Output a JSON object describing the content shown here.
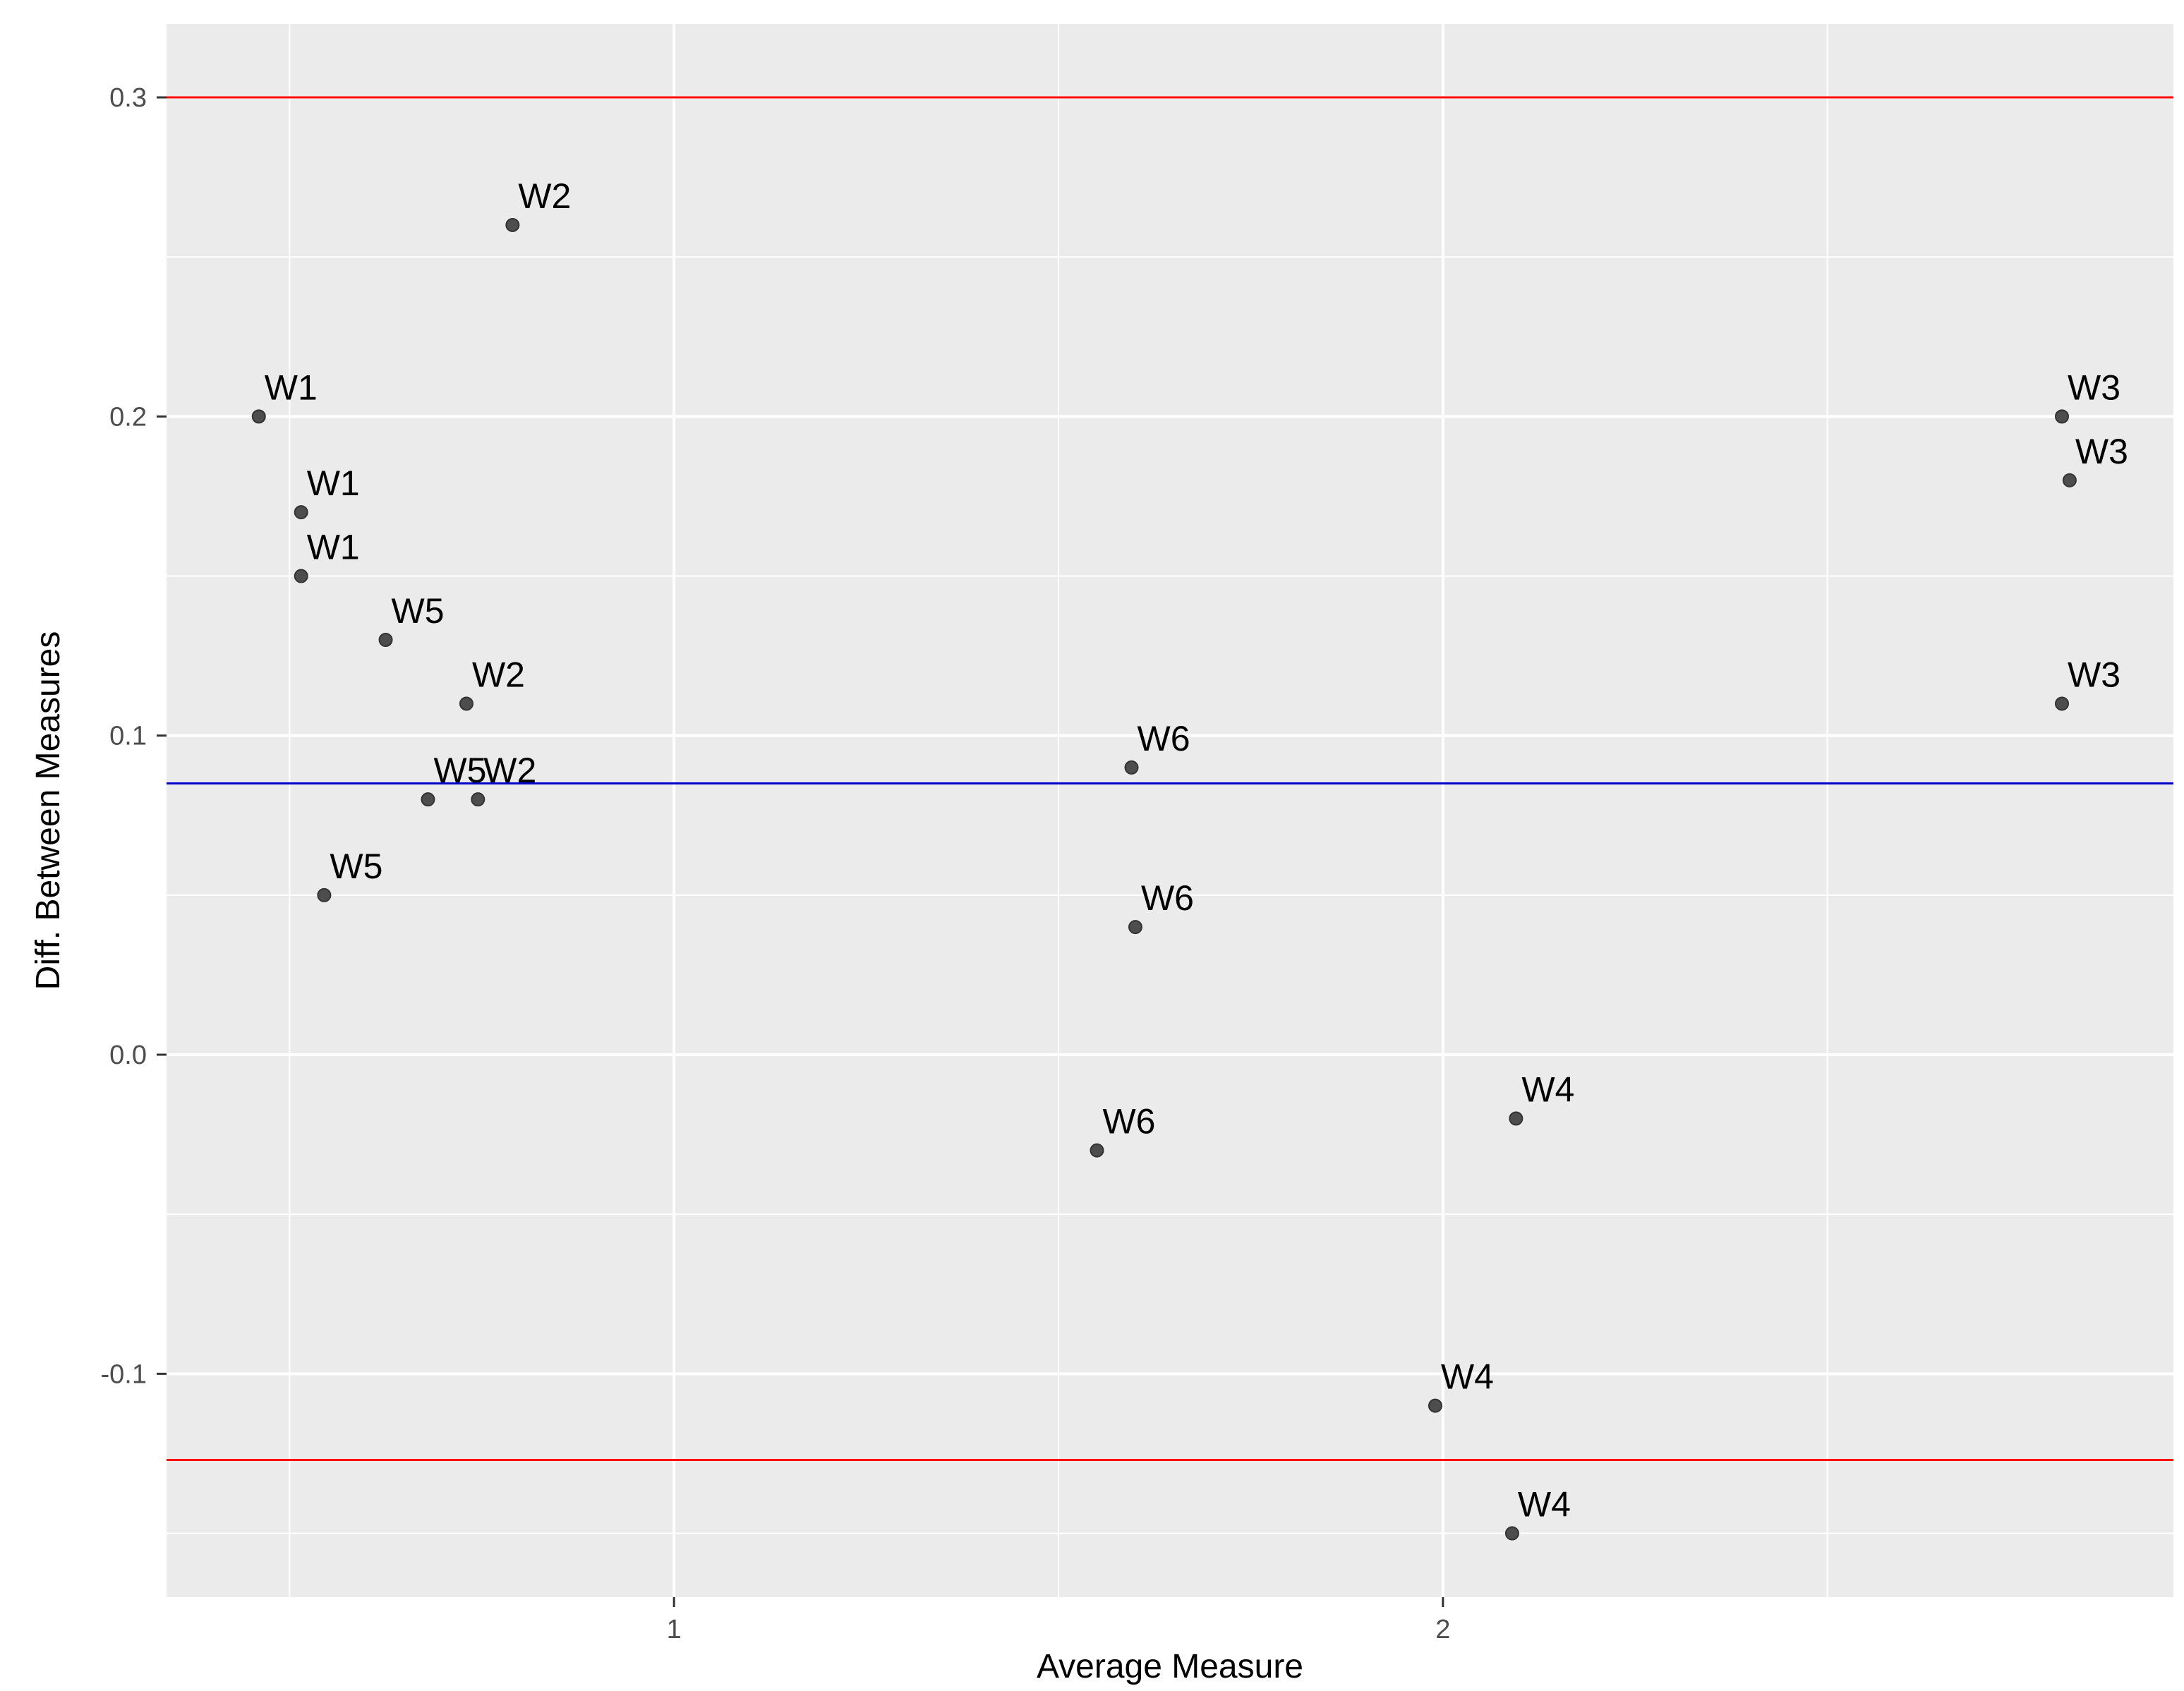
{
  "chart_data": {
    "type": "scatter",
    "xlabel": "Average Measure",
    "ylabel": "Diff. Between Measures",
    "xlim": [
      0.34,
      2.95
    ],
    "ylim": [
      -0.17,
      0.323
    ],
    "x_ticks": [
      {
        "value": 1,
        "label": "1"
      },
      {
        "value": 2,
        "label": "2"
      }
    ],
    "y_ticks": [
      {
        "value": -0.1,
        "label": "-0.1"
      },
      {
        "value": 0.0,
        "label": "0.0"
      },
      {
        "value": 0.1,
        "label": "0.1"
      },
      {
        "value": 0.2,
        "label": "0.2"
      },
      {
        "value": 0.3,
        "label": "0.3"
      }
    ],
    "x_minor_grid": [
      0.5,
      1.5,
      2.5
    ],
    "y_minor_grid": [
      -0.15,
      -0.05,
      0.05,
      0.15,
      0.25
    ],
    "grid": true,
    "mean_line": {
      "y": 0.085,
      "color": "#0000cc"
    },
    "limit_lines": [
      {
        "y": 0.3,
        "color": "#ff0000"
      },
      {
        "y": -0.127,
        "color": "#ff0000"
      }
    ],
    "points": [
      {
        "x": 0.46,
        "y": 0.2,
        "label": "W1"
      },
      {
        "x": 0.515,
        "y": 0.17,
        "label": "W1"
      },
      {
        "x": 0.515,
        "y": 0.15,
        "label": "W1"
      },
      {
        "x": 0.79,
        "y": 0.26,
        "label": "W2"
      },
      {
        "x": 0.73,
        "y": 0.11,
        "label": "W2"
      },
      {
        "x": 0.745,
        "y": 0.08,
        "label": "W2"
      },
      {
        "x": 2.805,
        "y": 0.2,
        "label": "W3"
      },
      {
        "x": 2.815,
        "y": 0.18,
        "label": "W3"
      },
      {
        "x": 2.805,
        "y": 0.11,
        "label": "W3"
      },
      {
        "x": 2.095,
        "y": -0.02,
        "label": "W4"
      },
      {
        "x": 1.99,
        "y": -0.11,
        "label": "W4"
      },
      {
        "x": 2.09,
        "y": -0.15,
        "label": "W4"
      },
      {
        "x": 0.625,
        "y": 0.13,
        "label": "W5"
      },
      {
        "x": 0.68,
        "y": 0.08,
        "label": "W5"
      },
      {
        "x": 0.545,
        "y": 0.05,
        "label": "W5"
      },
      {
        "x": 1.595,
        "y": 0.09,
        "label": "W6"
      },
      {
        "x": 1.6,
        "y": 0.04,
        "label": "W6"
      },
      {
        "x": 1.55,
        "y": -0.03,
        "label": "W6"
      }
    ],
    "colors": {
      "panel": "#ebebeb",
      "grid": "#ffffff",
      "point": "#4d4d4d"
    }
  }
}
